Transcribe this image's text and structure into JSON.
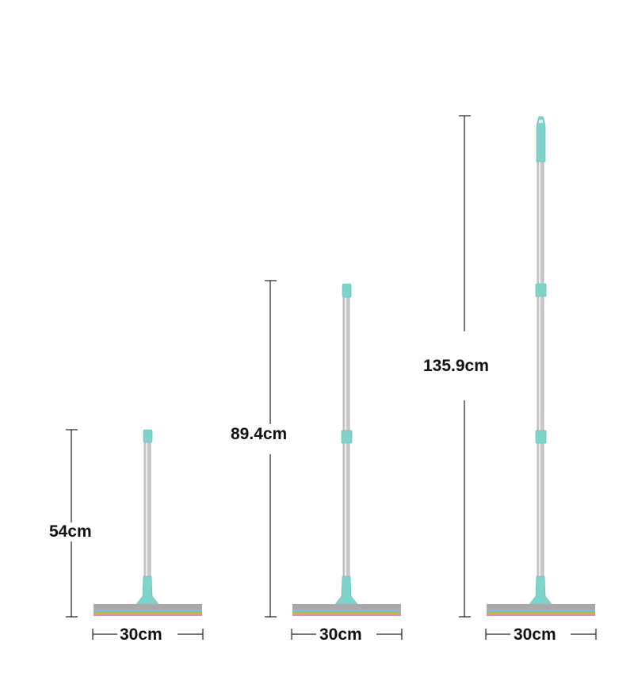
{
  "variants": [
    {
      "height_label": "54cm",
      "width_label": "30cm",
      "handle_sections": 1
    },
    {
      "height_label": "89.4cm",
      "width_label": "30cm",
      "handle_sections": 2
    },
    {
      "height_label": "135.9cm",
      "width_label": "30cm",
      "handle_sections": 3
    }
  ],
  "colors": {
    "handle_accent": "#7fd3cb",
    "pole": "#c7c7c7",
    "blade_gray": "#a9a9a9",
    "stripe_orange": "#f0a24a",
    "stripe_green": "#8cc36b",
    "stripe_blue": "#8fb8e0",
    "stripe_purple": "#c497d8",
    "dimension_line": "#222222"
  }
}
